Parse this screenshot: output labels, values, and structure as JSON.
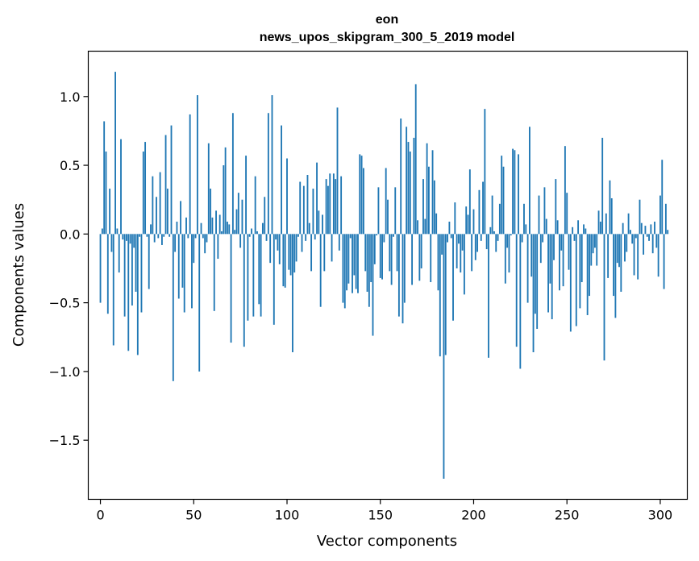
{
  "chart_data": {
    "type": "bar",
    "title": "eon",
    "subtitle": "news_upos_skipgram_300_5_2019 model",
    "xlabel": "Vector components",
    "ylabel": "Components values",
    "xlim": [
      -6.5,
      314.5
    ],
    "ylim": [
      -1.93,
      1.33
    ],
    "xticks": [
      0,
      50,
      100,
      150,
      200,
      250,
      300
    ],
    "yticks": [
      -1.5,
      -1.0,
      -0.5,
      0.0,
      0.5,
      1.0
    ],
    "ytick_labels": [
      "−1.5",
      "−1.0",
      "−0.5",
      "0.0",
      "0.5",
      "1.0"
    ],
    "grid": false,
    "bar_color": "#1f77b4",
    "values": [
      -0.5,
      0.04,
      0.82,
      0.6,
      -0.58,
      0.33,
      -0.13,
      -0.81,
      1.18,
      0.04,
      -0.28,
      0.69,
      -0.04,
      -0.6,
      -0.05,
      -0.85,
      -0.07,
      -0.52,
      -0.1,
      -0.42,
      -0.88,
      -0.02,
      -0.57,
      0.6,
      0.67,
      -0.02,
      -0.4,
      0.07,
      0.42,
      -0.06,
      0.27,
      -0.03,
      0.45,
      -0.08,
      -0.02,
      0.72,
      0.33,
      -0.02,
      0.79,
      -1.07,
      -0.13,
      0.09,
      -0.47,
      0.24,
      -0.39,
      -0.57,
      0.12,
      -0.03,
      0.87,
      -0.54,
      -0.21,
      -0.03,
      1.01,
      -1.0,
      0.08,
      -0.03,
      -0.14,
      -0.06,
      0.66,
      0.33,
      0.12,
      -0.56,
      0.17,
      -0.18,
      0.14,
      0.02,
      0.5,
      0.63,
      0.09,
      0.07,
      -0.79,
      0.88,
      0.03,
      0.18,
      0.3,
      -0.1,
      0.25,
      -0.82,
      0.57,
      -0.63,
      -0.02,
      0.04,
      -0.6,
      0.42,
      0.02,
      -0.51,
      -0.6,
      0.08,
      0.27,
      -0.05,
      0.88,
      -0.21,
      1.01,
      -0.66,
      -0.04,
      -0.12,
      -0.22,
      0.79,
      -0.38,
      -0.39,
      0.55,
      -0.26,
      -0.3,
      -0.86,
      -0.28,
      -0.2,
      -0.02,
      0.38,
      -0.13,
      0.35,
      -0.05,
      0.43,
      0.08,
      -0.27,
      0.33,
      -0.04,
      0.52,
      0.17,
      -0.53,
      0.14,
      -0.27,
      0.4,
      0.35,
      0.44,
      -0.2,
      0.44,
      0.4,
      0.92,
      -0.12,
      0.42,
      -0.5,
      -0.54,
      -0.41,
      -0.36,
      -0.03,
      -0.43,
      -0.3,
      -0.4,
      -0.43,
      0.58,
      0.57,
      0.48,
      -0.27,
      -0.42,
      -0.53,
      -0.35,
      -0.74,
      -0.22,
      -0.01,
      0.34,
      -0.32,
      -0.33,
      -0.06,
      0.48,
      0.25,
      -0.27,
      -0.37,
      -0.02,
      0.34,
      -0.27,
      -0.6,
      0.84,
      -0.65,
      -0.5,
      0.78,
      0.67,
      0.6,
      -0.37,
      0.7,
      1.09,
      0.1,
      -0.34,
      -0.25,
      0.4,
      0.11,
      0.66,
      0.49,
      -0.35,
      0.61,
      0.39,
      0.15,
      -0.41,
      -0.89,
      -0.15,
      -1.78,
      -0.88,
      -0.06,
      0.09,
      -0.03,
      -0.63,
      0.23,
      -0.25,
      -0.07,
      -0.28,
      -0.12,
      -0.44,
      0.2,
      0.14,
      0.47,
      -0.27,
      0.18,
      -0.19,
      -0.13,
      0.32,
      -0.05,
      0.38,
      0.91,
      -0.11,
      -0.9,
      0.05,
      0.28,
      0.02,
      -0.13,
      -0.05,
      0.22,
      0.57,
      0.49,
      -0.36,
      -0.1,
      -0.28,
      -0.01,
      0.62,
      0.61,
      -0.82,
      0.58,
      -0.98,
      -0.06,
      0.22,
      0.07,
      -0.5,
      0.78,
      -0.31,
      -0.86,
      -0.58,
      -0.69,
      0.28,
      -0.21,
      -0.06,
      0.34,
      0.11,
      -0.57,
      -0.36,
      -0.62,
      -0.19,
      0.4,
      0.1,
      -0.41,
      -0.12,
      -0.38,
      0.64,
      0.3,
      -0.26,
      -0.71,
      0.05,
      -0.05,
      -0.67,
      0.1,
      -0.54,
      -0.35,
      0.07,
      0.04,
      -0.59,
      -0.45,
      -0.23,
      -0.14,
      -0.1,
      -0.23,
      0.17,
      0.09,
      0.7,
      -0.92,
      0.15,
      -0.32,
      0.39,
      0.26,
      -0.45,
      -0.61,
      -0.21,
      -0.24,
      -0.42,
      0.08,
      -0.2,
      -0.13,
      0.15,
      0.03,
      -0.07,
      -0.3,
      -0.03,
      -0.33,
      0.25,
      0.08,
      -0.15,
      0.06,
      -0.02,
      -0.05,
      0.07,
      -0.14,
      0.09,
      -0.1,
      -0.31,
      0.28,
      0.54,
      -0.4,
      0.22,
      0.03
    ]
  }
}
